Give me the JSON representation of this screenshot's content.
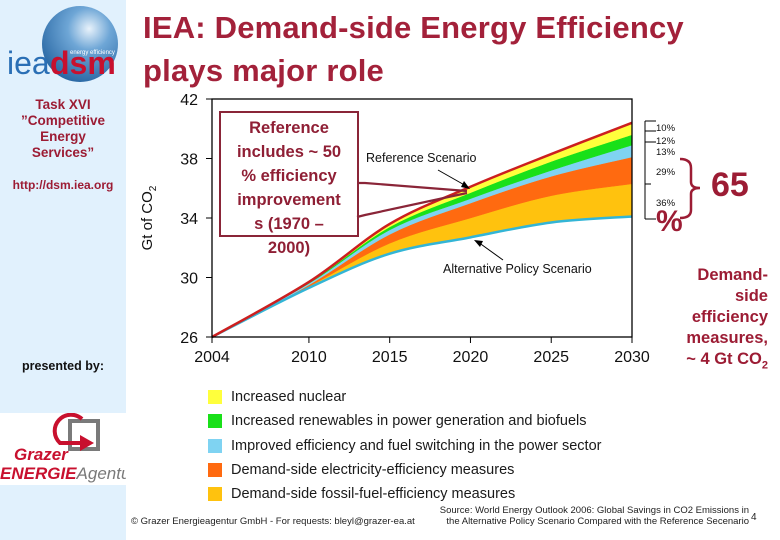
{
  "slide": {
    "title_line1": "IEA: Demand-side Energy Efficiency",
    "title_line2": "plays major role",
    "page_number": "4"
  },
  "sidebar": {
    "logo": {
      "iea": "iea",
      "dsm": "dsm",
      "tagline": "energy efficiency"
    },
    "task_lines": [
      "Task XVI",
      "”Competitive",
      "Energy",
      "Services”"
    ],
    "url": "http://dsm.iea.org",
    "presented_by": "presented by:",
    "partner_logo": {
      "line1": "Grazer",
      "line2_bold": "ENERGIE",
      "line2_light": "Agentur"
    }
  },
  "callout": {
    "lines": [
      "Reference",
      "includes ~ 50",
      "% efficiency",
      "improvement",
      "s (1970 –",
      "2000)"
    ]
  },
  "bracket": {
    "labels": [
      "10%",
      "12%",
      "13%",
      "29%",
      "36%"
    ],
    "total": "65",
    "total_unit": "%"
  },
  "demand_note": {
    "lines": [
      "Demand-",
      "side",
      "efficiency",
      "measures,"
    ],
    "last_line_prefix": "~ 4 Gt CO",
    "last_line_sub": "2"
  },
  "footer": {
    "copyright": "© Grazer Energieagentur GmbH - For requests: bleyl@grazer-ea.at",
    "source_line1": "Source: World Energy Outlook 2006: Global Savings in CO2 Emissions in",
    "source_line2": "the Alternative Policy Scenario Compared with the Reference Secenario"
  },
  "colors": {
    "brand_red": "#a3213a",
    "reference_line": "#cc1f1f",
    "alternative_line": "#33b5d6",
    "sidebar_bg": "#e1f1fd"
  },
  "chart_data": {
    "type": "area",
    "title": "",
    "xlabel": "",
    "ylabel": "Gt of CO2",
    "ylabel_main": "Gt of CO",
    "ylabel_sub": "2",
    "x": [
      2004,
      2010,
      2015,
      2020,
      2025,
      2030
    ],
    "xticks": [
      "2004",
      "2010",
      "2015",
      "2020",
      "2025",
      "2030"
    ],
    "yticks": [
      "26",
      "30",
      "34",
      "38",
      "42"
    ],
    "ylim": [
      26,
      42
    ],
    "xlim": [
      2004,
      2030
    ],
    "grid": false,
    "legend_position": "bottom",
    "lines": [
      {
        "name": "Reference Scenario",
        "values": [
          26.0,
          29.7,
          33.6,
          36.1,
          38.3,
          40.4
        ]
      },
      {
        "name": "Alternative Policy Scenario",
        "values": [
          26.0,
          29.3,
          31.6,
          32.7,
          33.7,
          34.1
        ]
      }
    ],
    "series": [
      {
        "name": "Demand-side fossil-fuel-efficiency measures",
        "color": "#ffc20e",
        "values": [
          26.0,
          29.4,
          32.3,
          34.0,
          35.5,
          36.3
        ],
        "share": "36%"
      },
      {
        "name": "Demand-side electricity-efficiency measures",
        "color": "#ff6a10",
        "values": [
          26.0,
          29.5,
          32.9,
          35.0,
          36.8,
          38.1
        ],
        "share": "29%"
      },
      {
        "name": "Improved efficiency and fuel switching in the power sector",
        "color": "#7fd3f2",
        "values": [
          26.0,
          29.6,
          33.2,
          35.3,
          37.2,
          38.9
        ],
        "share": "13%"
      },
      {
        "name": "Increased renewables in power generation and biofuels",
        "color": "#19e019",
        "values": [
          26.0,
          29.65,
          33.4,
          35.7,
          37.8,
          39.6
        ],
        "share": "12%"
      },
      {
        "name": "Increased nuclear",
        "color": "#ffff3c",
        "values": [
          26.0,
          29.7,
          33.6,
          36.1,
          38.3,
          40.4
        ],
        "share": "10%"
      }
    ],
    "legend": [
      {
        "label": "Increased nuclear",
        "color": "#ffff3c"
      },
      {
        "label": "Increased renewables in power generation and biofuels",
        "color": "#19e019"
      },
      {
        "label": "Improved efficiency and fuel switching in the power sector",
        "color": "#7fd3f2"
      },
      {
        "label": "Demand-side electricity-efficiency measures",
        "color": "#ff6a10"
      },
      {
        "label": "Demand-side fossil-fuel-efficiency measures",
        "color": "#ffc20e"
      }
    ],
    "annotations": [
      "Reference Scenario",
      "Alternative Policy Scenario"
    ]
  }
}
